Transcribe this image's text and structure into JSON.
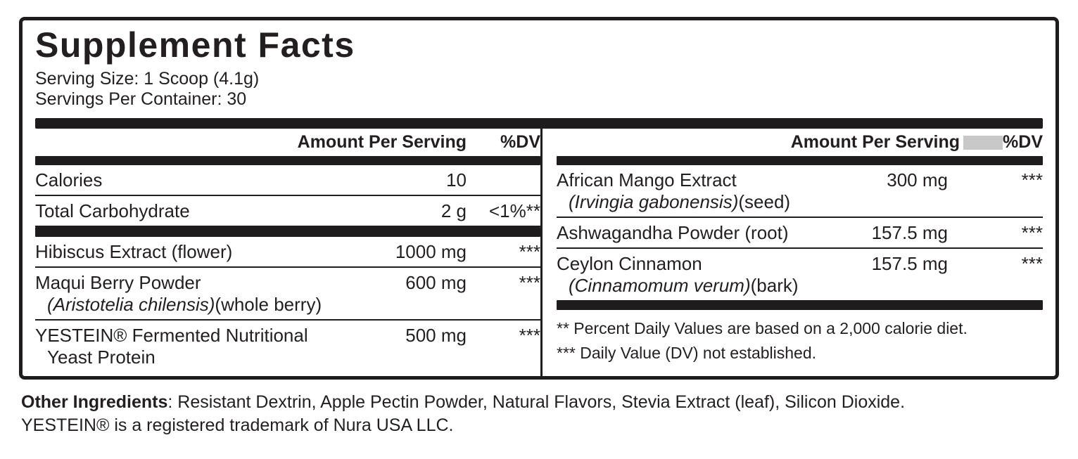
{
  "label": {
    "title": "Supplement Facts",
    "serving_size": "Serving Size: 1 Scoop (4.1g)",
    "servings_per_container": "Servings Per Container: 30",
    "columns": {
      "left": {
        "header_amount": "Amount Per Serving",
        "header_dv": "%DV",
        "rows": [
          {
            "name": "Calories",
            "amount": "10",
            "dv": ""
          },
          {
            "name": "Total Carbohydrate",
            "amount": "2 g",
            "dv": "<1%**"
          },
          {
            "name": "Hibiscus Extract (flower)",
            "amount": "1000 mg",
            "dv": "***"
          },
          {
            "name": "Maqui Berry Powder",
            "sub_italic": "(Aristotelia chilensis)",
            "sub_plain": "(whole berry)",
            "amount": "600 mg",
            "dv": "***"
          },
          {
            "name": "YESTEIN® Fermented Nutritional",
            "name_line2": "Yeast Protein",
            "amount": "500 mg",
            "dv": "***"
          }
        ]
      },
      "right": {
        "header_amount": "Amount Per Serving",
        "header_dv": "%DV",
        "rows": [
          {
            "name": "African Mango Extract",
            "sub_italic": "(Irvingia gabonensis)",
            "sub_plain": "(seed)",
            "amount": "300 mg",
            "dv": "***"
          },
          {
            "name": "Ashwagandha Powder (root)",
            "amount": "157.5 mg",
            "dv": "***"
          },
          {
            "name": "Ceylon Cinnamon",
            "sub_italic": "(Cinnamomum verum)",
            "sub_plain": "(bark)",
            "amount": "157.5 mg",
            "dv": "***"
          }
        ],
        "footnotes": [
          "** Percent Daily Values are based on a 2,000 calorie diet.",
          "*** Daily Value (DV) not established."
        ]
      }
    }
  },
  "footer": {
    "other_ingredients_label": "Other Ingredients",
    "other_ingredients_text": ": Resistant Dextrin, Apple Pectin Powder, Natural Flavors, Stevia Extract (leaf), Silicon Dioxide.",
    "trademark": "YESTEIN® is a registered trademark of Nura USA LLC."
  },
  "colors": {
    "text": "#231f20",
    "bar": "#1e1c1c",
    "redaction_gray": "#c8c8c8"
  }
}
